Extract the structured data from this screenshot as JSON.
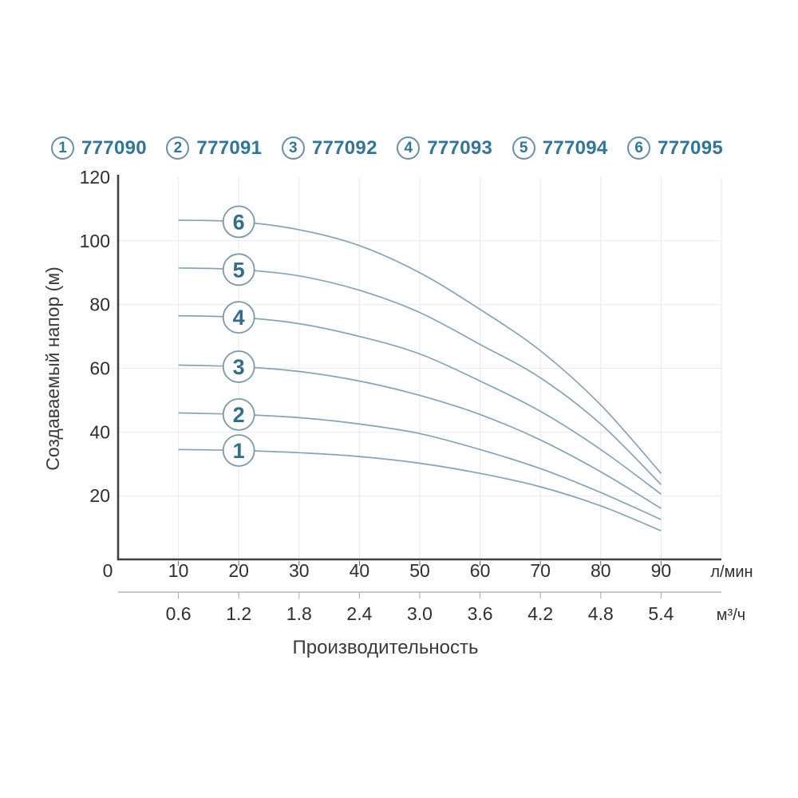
{
  "colors": {
    "accent_teal": "#30769a",
    "curve": "#85a4b6",
    "axis": "#404040",
    "grid": "#eaeaea",
    "secondary_axis": "#a6a6a6",
    "tick_text": "#2f2f2f",
    "axis_title_text": "#3a3a3a",
    "badge_border": "#7d99a9",
    "badge_number": "#2f6e8e"
  },
  "legend": {
    "items": [
      {
        "index": "1",
        "code": "777090"
      },
      {
        "index": "2",
        "code": "777091"
      },
      {
        "index": "3",
        "code": "777092"
      },
      {
        "index": "4",
        "code": "777093"
      },
      {
        "index": "5",
        "code": "777094"
      },
      {
        "index": "6",
        "code": "777095"
      }
    ]
  },
  "chart_data": {
    "type": "line",
    "title": "",
    "xlabel": "Производительность",
    "ylabel": "Создаваемый напор (м)",
    "grid": true,
    "xlim": [
      0,
      100
    ],
    "ylim": [
      0,
      120
    ],
    "y_ticks": [
      20,
      40,
      60,
      80,
      100,
      120
    ],
    "x_axis_primary": {
      "unit": "л/мин",
      "ticks": [
        0,
        10,
        20,
        30,
        40,
        50,
        60,
        70,
        80,
        90
      ]
    },
    "x_axis_secondary": {
      "unit": "м³/ч",
      "ticks": [
        "0.6",
        "1.2",
        "1.8",
        "2.4",
        "3.0",
        "3.6",
        "4.2",
        "4.8",
        "5.4"
      ]
    },
    "x": [
      10,
      20,
      30,
      40,
      50,
      60,
      70,
      80,
      90
    ],
    "marker_at_x": 20,
    "series": [
      {
        "label": "1",
        "name": "777090",
        "values": [
          34.5,
          34.2,
          33.5,
          32.3,
          30.2,
          27.0,
          22.8,
          16.8,
          9.0
        ]
      },
      {
        "label": "2",
        "name": "777091",
        "values": [
          46.0,
          45.5,
          44.5,
          42.5,
          39.5,
          34.5,
          28.5,
          21.0,
          12.5
        ]
      },
      {
        "label": "3",
        "name": "777092",
        "values": [
          61.0,
          60.5,
          59.0,
          56.0,
          51.5,
          45.5,
          37.5,
          27.5,
          16.0
        ]
      },
      {
        "label": "4",
        "name": "777093",
        "values": [
          76.5,
          76.0,
          74.0,
          70.0,
          64.5,
          56.0,
          46.5,
          34.5,
          20.5
        ]
      },
      {
        "label": "5",
        "name": "777094",
        "values": [
          91.5,
          91.0,
          89.0,
          84.5,
          77.5,
          67.5,
          57.0,
          42.5,
          23.5
        ]
      },
      {
        "label": "6",
        "name": "777095",
        "values": [
          106.5,
          106.0,
          103.5,
          98.5,
          90.0,
          78.5,
          65.5,
          48.5,
          27.0
        ]
      }
    ]
  }
}
